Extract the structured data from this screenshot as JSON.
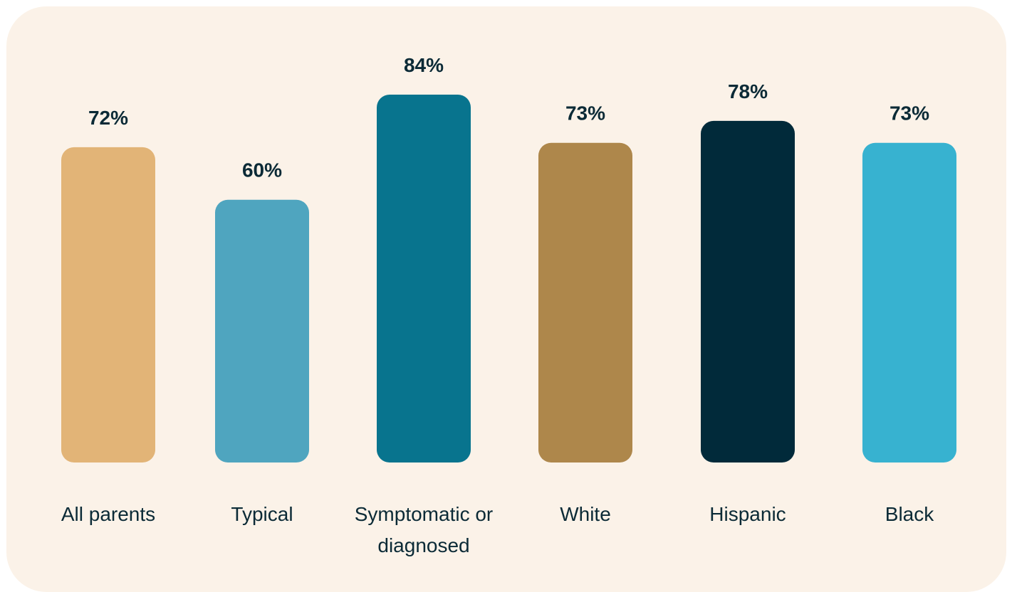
{
  "chart_data": {
    "type": "bar",
    "categories": [
      [
        "All parents"
      ],
      [
        "Typical"
      ],
      [
        "Symptomatic or",
        "diagnosed"
      ],
      [
        "White"
      ],
      [
        "Hispanic"
      ],
      [
        "Black"
      ]
    ],
    "values": [
      72,
      60,
      84,
      73,
      78,
      73
    ],
    "value_labels": [
      "72%",
      "60%",
      "84%",
      "73%",
      "78%",
      "73%"
    ],
    "colors": [
      "#E2B477",
      "#4FA5BF",
      "#08748E",
      "#AE874B",
      "#012A3A",
      "#37B2D0"
    ],
    "title": "",
    "xlabel": "",
    "ylabel": "",
    "grid": false,
    "legend": "none"
  }
}
